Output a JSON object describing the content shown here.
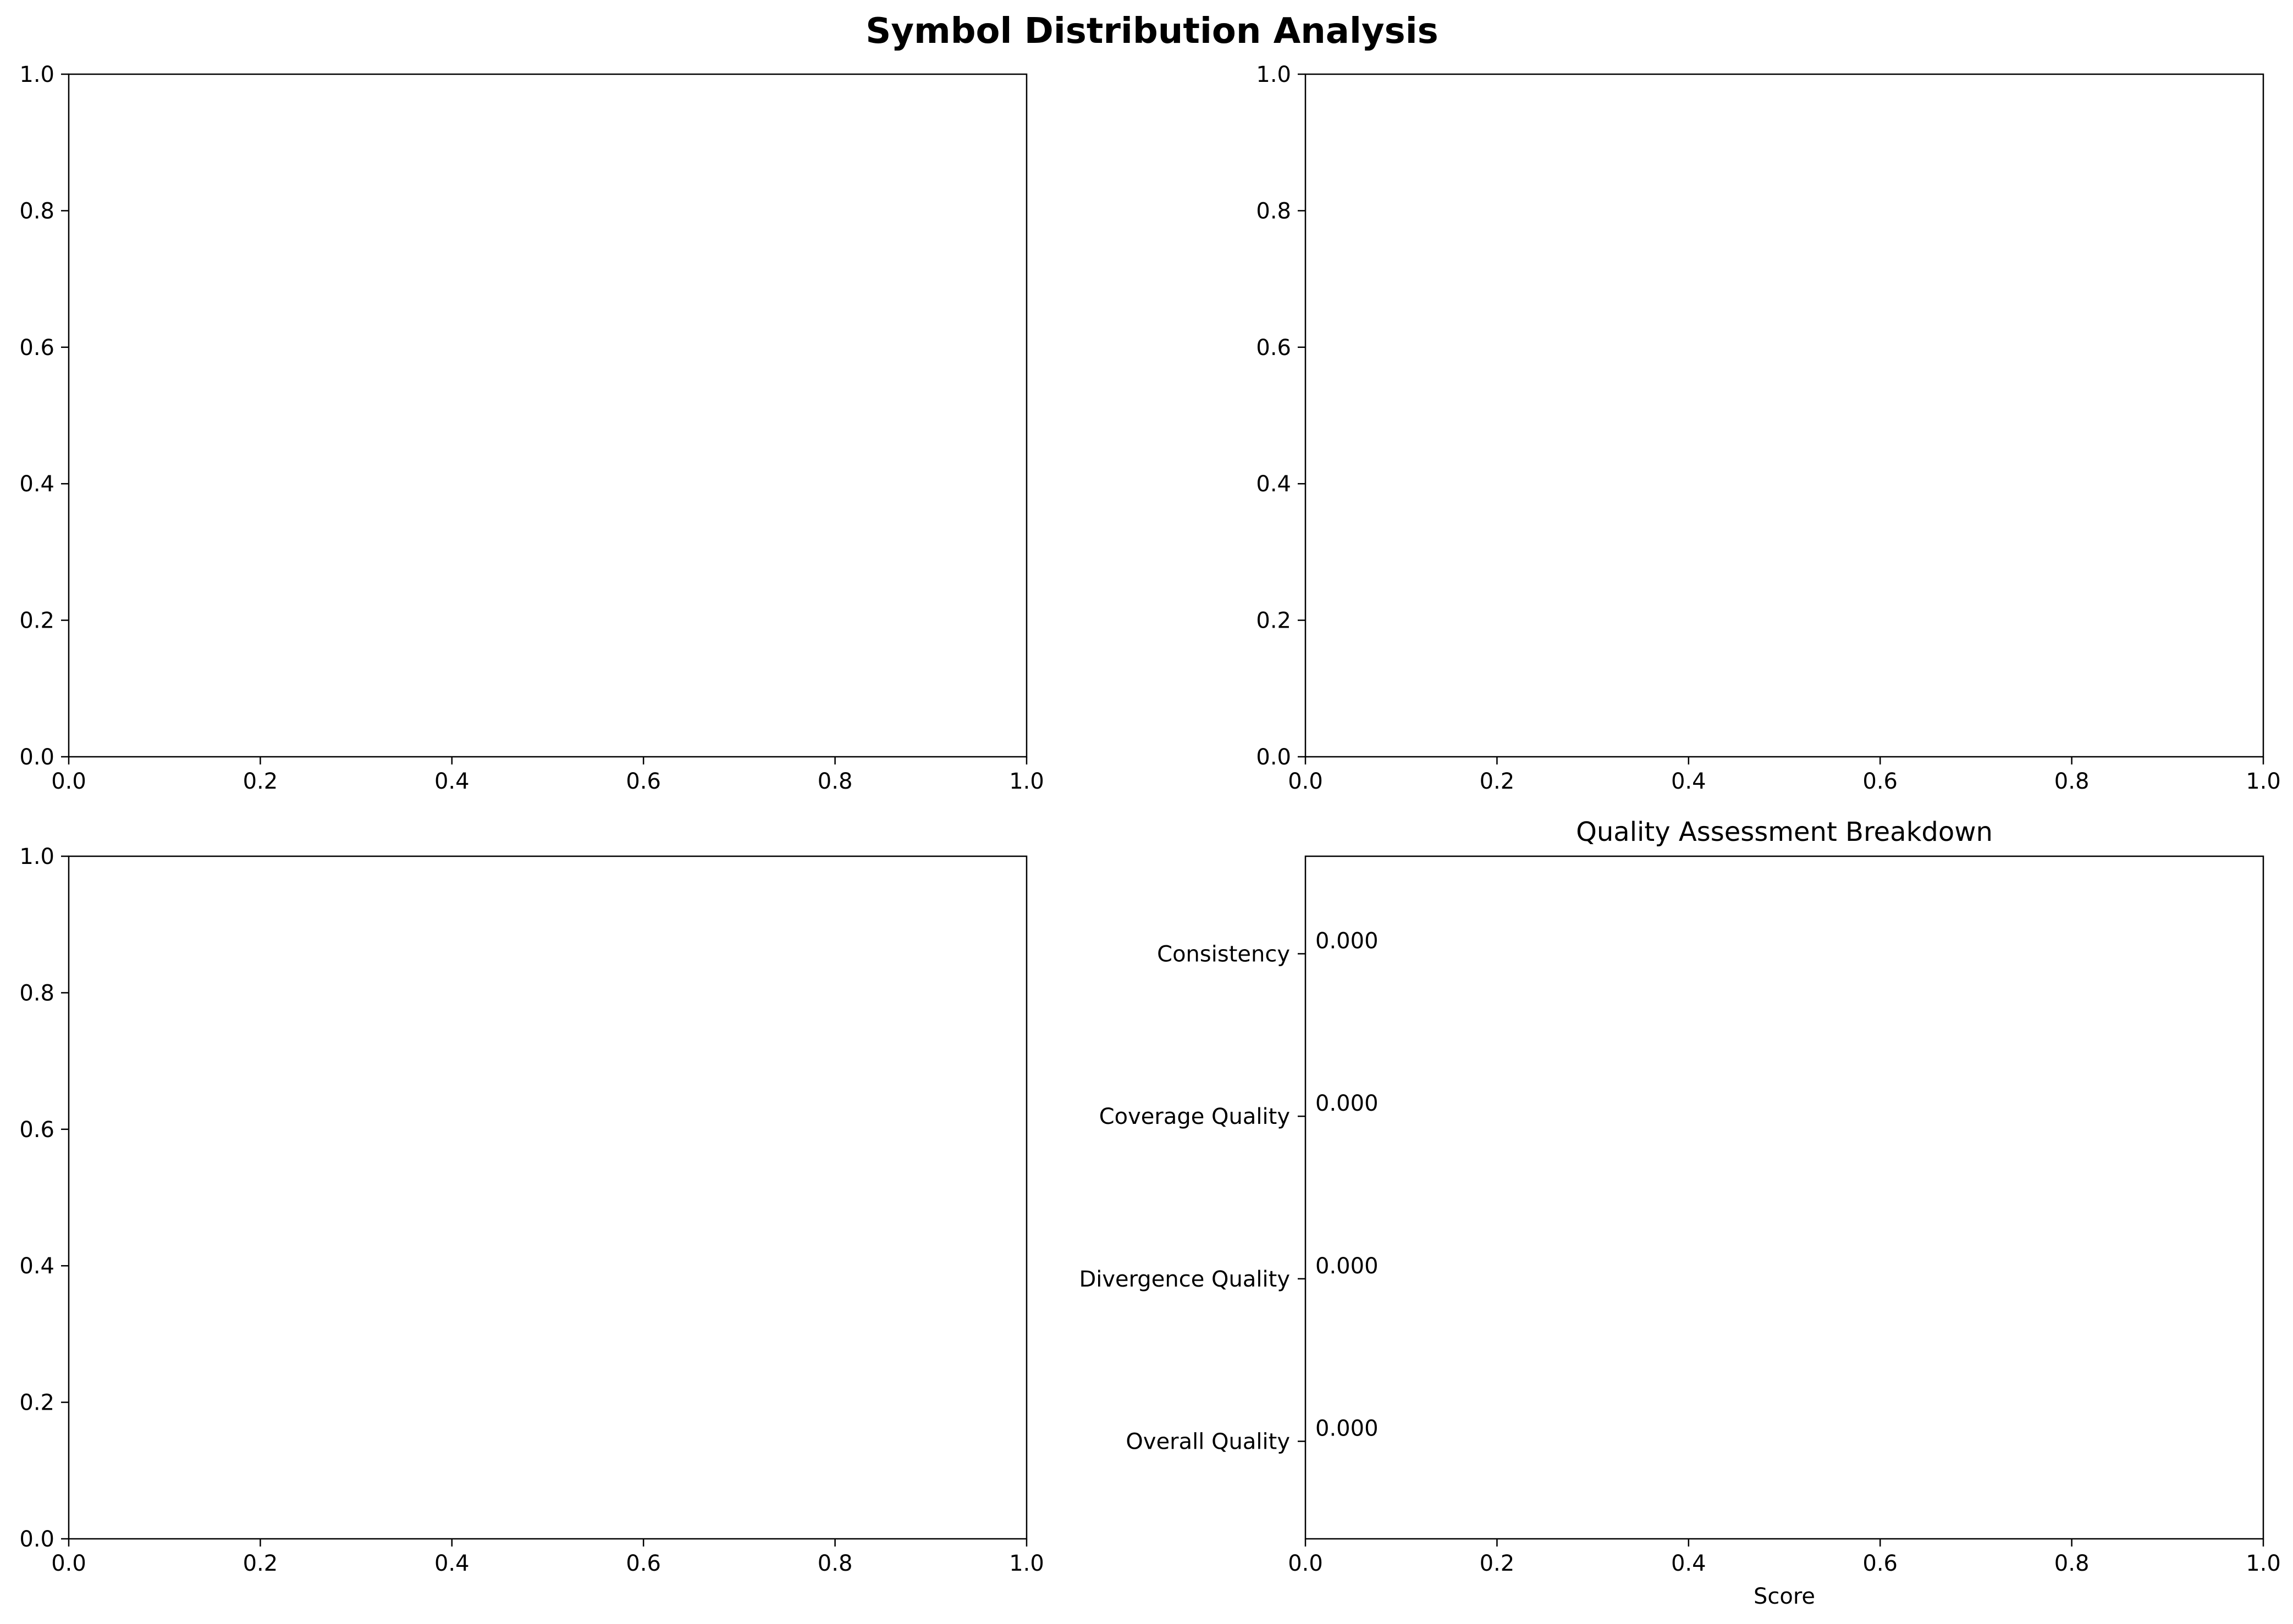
{
  "figure": {
    "title": "Symbol Distribution Analysis"
  },
  "chart_data": [
    {
      "type": "line",
      "title": "",
      "xlabel": "",
      "ylabel": "",
      "xlim": [
        0,
        1
      ],
      "ylim": [
        0,
        1
      ],
      "x_ticks": [
        "0.0",
        "0.2",
        "0.4",
        "0.6",
        "0.8",
        "1.0"
      ],
      "y_ticks": [
        "0.0",
        "0.2",
        "0.4",
        "0.6",
        "0.8",
        "1.0"
      ],
      "series": [],
      "grid": false
    },
    {
      "type": "line",
      "title": "",
      "xlabel": "",
      "ylabel": "",
      "xlim": [
        0,
        1
      ],
      "ylim": [
        0,
        1
      ],
      "x_ticks": [
        "0.0",
        "0.2",
        "0.4",
        "0.6",
        "0.8",
        "1.0"
      ],
      "y_ticks": [
        "0.0",
        "0.2",
        "0.4",
        "0.6",
        "0.8",
        "1.0"
      ],
      "series": [],
      "grid": false
    },
    {
      "type": "line",
      "title": "",
      "xlabel": "",
      "ylabel": "",
      "xlim": [
        0,
        1
      ],
      "ylim": [
        0,
        1
      ],
      "x_ticks": [
        "0.0",
        "0.2",
        "0.4",
        "0.6",
        "0.8",
        "1.0"
      ],
      "y_ticks": [
        "0.0",
        "0.2",
        "0.4",
        "0.6",
        "0.8",
        "1.0"
      ],
      "series": [],
      "grid": false
    },
    {
      "type": "bar",
      "orientation": "horizontal",
      "title": "Quality Assessment Breakdown",
      "xlabel": "Score",
      "ylabel": "",
      "xlim": [
        0,
        1
      ],
      "x_ticks": [
        "0.0",
        "0.2",
        "0.4",
        "0.6",
        "0.8",
        "1.0"
      ],
      "categories": [
        "Consistency",
        "Coverage Quality",
        "Divergence Quality",
        "Overall Quality"
      ],
      "values": [
        0.0,
        0.0,
        0.0,
        0.0
      ],
      "value_labels": [
        "0.000",
        "0.000",
        "0.000",
        "0.000"
      ],
      "grid": false
    }
  ]
}
